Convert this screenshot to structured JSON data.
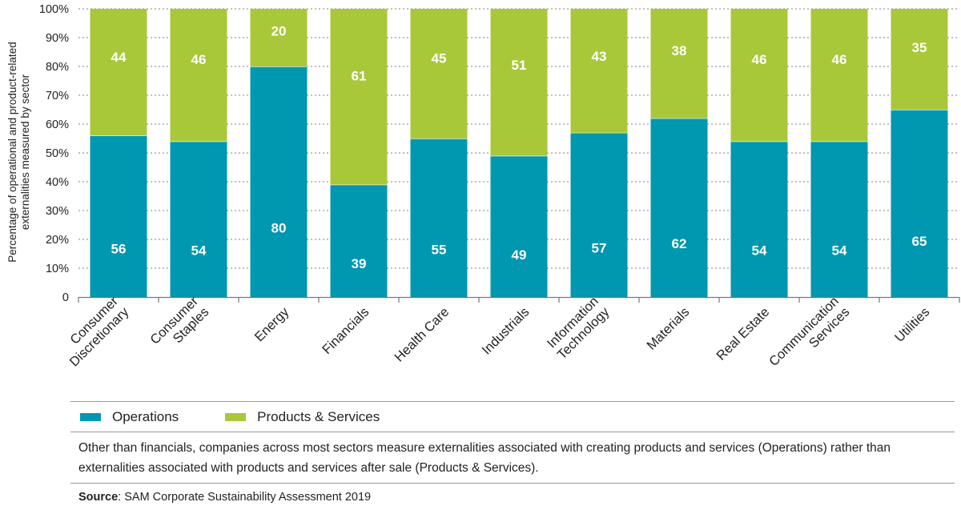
{
  "chart_data": {
    "type": "bar",
    "stacked": true,
    "orientation": "vertical",
    "categories": [
      "Consumer Discretionary",
      "Consumer Staples",
      "Energy",
      "Financials",
      "Health Care",
      "Industrials",
      "Information Technology",
      "Materials",
      "Real Estate",
      "Communication Services",
      "Utilities"
    ],
    "category_lines": [
      [
        "Consumer",
        "Discretionary"
      ],
      [
        "Consumer",
        "Staples"
      ],
      [
        "Energy"
      ],
      [
        "Financials"
      ],
      [
        "Health Care"
      ],
      [
        "Industrials"
      ],
      [
        "Information",
        "Technology"
      ],
      [
        "Materials"
      ],
      [
        "Real Estate"
      ],
      [
        "Communication",
        "Services"
      ],
      [
        "Utilities"
      ]
    ],
    "series": [
      {
        "name": "Operations",
        "color": "#0097b0",
        "values": [
          56,
          54,
          80,
          39,
          55,
          49,
          57,
          62,
          54,
          54,
          65
        ]
      },
      {
        "name": "Products & Services",
        "color": "#a8c83a",
        "values": [
          44,
          46,
          20,
          61,
          45,
          51,
          43,
          38,
          46,
          46,
          35
        ]
      }
    ],
    "ylabel_lines": [
      "Percentage of operational and product-related",
      "externalities measured by sector"
    ],
    "ylim": [
      0,
      100
    ],
    "yticks": [
      0,
      10,
      20,
      30,
      40,
      50,
      60,
      70,
      80,
      90,
      100
    ],
    "ytick_labels": [
      "0",
      "10%",
      "20%",
      "30%",
      "40%",
      "50%",
      "60%",
      "70%",
      "80%",
      "90%",
      "100%"
    ],
    "grid": true,
    "legend_position": "bottom-left"
  },
  "note": "Other than financials, companies across most sectors measure externalities associated with creating products and services (Operations) rather than externalities associated with products and services after sale (Products & Services).",
  "source": {
    "label": "Source",
    "text": ": SAM Corporate Sustainability Assessment 2019"
  }
}
